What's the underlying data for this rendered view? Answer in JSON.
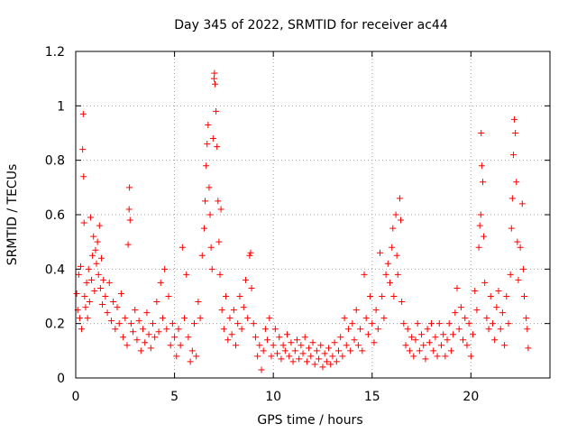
{
  "chart_data": {
    "type": "scatter",
    "title": "Day 345 of 2022, SRMTID for receiver ac44",
    "xlabel": "GPS time / hours",
    "ylabel": "SRMTID / TECUs",
    "xlim": [
      0,
      24
    ],
    "ylim": [
      0,
      1.2
    ],
    "xticks": [
      0,
      5,
      10,
      15,
      20
    ],
    "xtick_labels": [
      "0",
      "5",
      "10",
      "15",
      "20"
    ],
    "yticks": [
      0,
      0.2,
      0.4,
      0.6,
      0.8,
      1.0,
      1.2
    ],
    "ytick_labels": [
      "0",
      "0.2",
      "0.4",
      "0.6",
      "0.8",
      "1",
      "1.2"
    ],
    "grid": true,
    "marker": "plus",
    "marker_color": "#ff0000",
    "series": [
      {
        "name": "SRMTID",
        "points": [
          [
            0.05,
            0.31
          ],
          [
            0.1,
            0.25
          ],
          [
            0.15,
            0.38
          ],
          [
            0.2,
            0.22
          ],
          [
            0.25,
            0.41
          ],
          [
            0.3,
            0.18
          ],
          [
            0.35,
            0.84
          ],
          [
            0.38,
            0.97
          ],
          [
            0.4,
            0.74
          ],
          [
            0.42,
            0.57
          ],
          [
            0.45,
            0.3
          ],
          [
            0.5,
            0.26
          ],
          [
            0.55,
            0.35
          ],
          [
            0.6,
            0.22
          ],
          [
            0.65,
            0.4
          ],
          [
            0.7,
            0.28
          ],
          [
            0.75,
            0.59
          ],
          [
            0.8,
            0.36
          ],
          [
            0.85,
            0.45
          ],
          [
            0.9,
            0.52
          ],
          [
            0.95,
            0.32
          ],
          [
            1.0,
            0.47
          ],
          [
            1.05,
            0.42
          ],
          [
            1.1,
            0.5
          ],
          [
            1.15,
            0.38
          ],
          [
            1.2,
            0.56
          ],
          [
            1.25,
            0.33
          ],
          [
            1.3,
            0.44
          ],
          [
            1.35,
            0.27
          ],
          [
            1.4,
            0.36
          ],
          [
            1.5,
            0.3
          ],
          [
            1.6,
            0.24
          ],
          [
            1.7,
            0.35
          ],
          [
            1.8,
            0.21
          ],
          [
            1.9,
            0.28
          ],
          [
            2.0,
            0.18
          ],
          [
            2.1,
            0.26
          ],
          [
            2.2,
            0.2
          ],
          [
            2.3,
            0.31
          ],
          [
            2.4,
            0.15
          ],
          [
            2.5,
            0.22
          ],
          [
            2.6,
            0.12
          ],
          [
            2.65,
            0.49
          ],
          [
            2.7,
            0.62
          ],
          [
            2.72,
            0.7
          ],
          [
            2.75,
            0.58
          ],
          [
            2.8,
            0.2
          ],
          [
            2.9,
            0.17
          ],
          [
            3.0,
            0.25
          ],
          [
            3.1,
            0.14
          ],
          [
            3.2,
            0.21
          ],
          [
            3.3,
            0.1
          ],
          [
            3.4,
            0.18
          ],
          [
            3.5,
            0.13
          ],
          [
            3.6,
            0.24
          ],
          [
            3.7,
            0.16
          ],
          [
            3.8,
            0.11
          ],
          [
            3.9,
            0.2
          ],
          [
            4.0,
            0.15
          ],
          [
            4.1,
            0.28
          ],
          [
            4.2,
            0.17
          ],
          [
            4.3,
            0.35
          ],
          [
            4.4,
            0.22
          ],
          [
            4.5,
            0.4
          ],
          [
            4.6,
            0.18
          ],
          [
            4.7,
            0.3
          ],
          [
            4.8,
            0.12
          ],
          [
            4.9,
            0.2
          ],
          [
            5.0,
            0.15
          ],
          [
            5.1,
            0.08
          ],
          [
            5.2,
            0.18
          ],
          [
            5.3,
            0.12
          ],
          [
            5.4,
            0.48
          ],
          [
            5.5,
            0.22
          ],
          [
            5.6,
            0.38
          ],
          [
            5.7,
            0.15
          ],
          [
            5.8,
            0.06
          ],
          [
            5.9,
            0.1
          ],
          [
            6.0,
            0.2
          ],
          [
            6.1,
            0.08
          ],
          [
            6.2,
            0.28
          ],
          [
            6.3,
            0.22
          ],
          [
            6.4,
            0.45
          ],
          [
            6.5,
            0.55
          ],
          [
            6.55,
            0.65
          ],
          [
            6.6,
            0.78
          ],
          [
            6.65,
            0.86
          ],
          [
            6.7,
            0.93
          ],
          [
            6.75,
            0.7
          ],
          [
            6.8,
            0.6
          ],
          [
            6.85,
            0.48
          ],
          [
            6.9,
            0.4
          ],
          [
            6.95,
            0.88
          ],
          [
            7.0,
            1.1
          ],
          [
            7.02,
            1.12
          ],
          [
            7.05,
            1.08
          ],
          [
            7.1,
            0.98
          ],
          [
            7.15,
            0.85
          ],
          [
            7.2,
            0.65
          ],
          [
            7.25,
            0.5
          ],
          [
            7.3,
            0.38
          ],
          [
            7.35,
            0.62
          ],
          [
            7.4,
            0.25
          ],
          [
            7.5,
            0.18
          ],
          [
            7.6,
            0.3
          ],
          [
            7.7,
            0.14
          ],
          [
            7.8,
            0.22
          ],
          [
            7.9,
            0.16
          ],
          [
            8.0,
            0.25
          ],
          [
            8.1,
            0.12
          ],
          [
            8.2,
            0.2
          ],
          [
            8.3,
            0.3
          ],
          [
            8.4,
            0.18
          ],
          [
            8.5,
            0.26
          ],
          [
            8.6,
            0.36
          ],
          [
            8.7,
            0.22
          ],
          [
            8.8,
            0.45
          ],
          [
            8.85,
            0.46
          ],
          [
            8.9,
            0.33
          ],
          [
            9.0,
            0.2
          ],
          [
            9.1,
            0.15
          ],
          [
            9.2,
            0.08
          ],
          [
            9.3,
            0.12
          ],
          [
            9.4,
            0.03
          ],
          [
            9.5,
            0.1
          ],
          [
            9.6,
            0.18
          ],
          [
            9.7,
            0.14
          ],
          [
            9.8,
            0.22
          ],
          [
            9.9,
            0.08
          ],
          [
            10.0,
            0.12
          ],
          [
            10.1,
            0.18
          ],
          [
            10.2,
            0.09
          ],
          [
            10.3,
            0.15
          ],
          [
            10.4,
            0.07
          ],
          [
            10.5,
            0.12
          ],
          [
            10.6,
            0.1
          ],
          [
            10.7,
            0.16
          ],
          [
            10.8,
            0.08
          ],
          [
            10.9,
            0.13
          ],
          [
            11.0,
            0.06
          ],
          [
            11.1,
            0.1
          ],
          [
            11.2,
            0.14
          ],
          [
            11.3,
            0.07
          ],
          [
            11.4,
            0.12
          ],
          [
            11.5,
            0.09
          ],
          [
            11.6,
            0.15
          ],
          [
            11.7,
            0.06
          ],
          [
            11.8,
            0.11
          ],
          [
            11.9,
            0.08
          ],
          [
            12.0,
            0.13
          ],
          [
            12.1,
            0.05
          ],
          [
            12.2,
            0.1
          ],
          [
            12.3,
            0.07
          ],
          [
            12.4,
            0.12
          ],
          [
            12.5,
            0.04
          ],
          [
            12.6,
            0.09
          ],
          [
            12.7,
            0.06
          ],
          [
            12.8,
            0.11
          ],
          [
            12.9,
            0.05
          ],
          [
            13.0,
            0.08
          ],
          [
            13.1,
            0.13
          ],
          [
            13.2,
            0.06
          ],
          [
            13.3,
            0.1
          ],
          [
            13.4,
            0.15
          ],
          [
            13.5,
            0.08
          ],
          [
            13.6,
            0.22
          ],
          [
            13.7,
            0.12
          ],
          [
            13.8,
            0.18
          ],
          [
            13.9,
            0.1
          ],
          [
            14.0,
            0.2
          ],
          [
            14.1,
            0.14
          ],
          [
            14.2,
            0.25
          ],
          [
            14.3,
            0.12
          ],
          [
            14.4,
            0.18
          ],
          [
            14.5,
            0.1
          ],
          [
            14.6,
            0.38
          ],
          [
            14.7,
            0.22
          ],
          [
            14.8,
            0.16
          ],
          [
            14.9,
            0.3
          ],
          [
            15.0,
            0.2
          ],
          [
            15.1,
            0.13
          ],
          [
            15.2,
            0.25
          ],
          [
            15.3,
            0.18
          ],
          [
            15.4,
            0.46
          ],
          [
            15.5,
            0.3
          ],
          [
            15.6,
            0.22
          ],
          [
            15.7,
            0.38
          ],
          [
            15.8,
            0.42
          ],
          [
            15.9,
            0.35
          ],
          [
            16.0,
            0.48
          ],
          [
            16.05,
            0.55
          ],
          [
            16.1,
            0.3
          ],
          [
            16.2,
            0.6
          ],
          [
            16.25,
            0.45
          ],
          [
            16.3,
            0.38
          ],
          [
            16.4,
            0.66
          ],
          [
            16.45,
            0.58
          ],
          [
            16.5,
            0.28
          ],
          [
            16.6,
            0.2
          ],
          [
            16.7,
            0.12
          ],
          [
            16.8,
            0.18
          ],
          [
            16.9,
            0.1
          ],
          [
            17.0,
            0.15
          ],
          [
            17.1,
            0.08
          ],
          [
            17.2,
            0.14
          ],
          [
            17.3,
            0.2
          ],
          [
            17.4,
            0.1
          ],
          [
            17.5,
            0.16
          ],
          [
            17.6,
            0.12
          ],
          [
            17.7,
            0.07
          ],
          [
            17.8,
            0.18
          ],
          [
            17.9,
            0.13
          ],
          [
            18.0,
            0.2
          ],
          [
            18.1,
            0.1
          ],
          [
            18.2,
            0.15
          ],
          [
            18.3,
            0.08
          ],
          [
            18.4,
            0.2
          ],
          [
            18.5,
            0.12
          ],
          [
            18.6,
            0.16
          ],
          [
            18.7,
            0.08
          ],
          [
            18.8,
            0.14
          ],
          [
            18.9,
            0.2
          ],
          [
            19.0,
            0.1
          ],
          [
            19.1,
            0.16
          ],
          [
            19.2,
            0.24
          ],
          [
            19.3,
            0.33
          ],
          [
            19.4,
            0.18
          ],
          [
            19.5,
            0.26
          ],
          [
            19.6,
            0.14
          ],
          [
            19.7,
            0.22
          ],
          [
            19.8,
            0.12
          ],
          [
            19.9,
            0.2
          ],
          [
            20.0,
            0.08
          ],
          [
            20.1,
            0.16
          ],
          [
            20.2,
            0.32
          ],
          [
            20.3,
            0.25
          ],
          [
            20.4,
            0.48
          ],
          [
            20.45,
            0.56
          ],
          [
            20.5,
            0.6
          ],
          [
            20.52,
            0.9
          ],
          [
            20.55,
            0.78
          ],
          [
            20.6,
            0.72
          ],
          [
            20.65,
            0.52
          ],
          [
            20.7,
            0.35
          ],
          [
            20.8,
            0.22
          ],
          [
            20.9,
            0.18
          ],
          [
            21.0,
            0.3
          ],
          [
            21.1,
            0.2
          ],
          [
            21.2,
            0.14
          ],
          [
            21.3,
            0.26
          ],
          [
            21.4,
            0.32
          ],
          [
            21.5,
            0.18
          ],
          [
            21.6,
            0.24
          ],
          [
            21.7,
            0.12
          ],
          [
            21.8,
            0.3
          ],
          [
            21.9,
            0.2
          ],
          [
            22.0,
            0.38
          ],
          [
            22.05,
            0.55
          ],
          [
            22.1,
            0.66
          ],
          [
            22.15,
            0.82
          ],
          [
            22.2,
            0.95
          ],
          [
            22.25,
            0.9
          ],
          [
            22.3,
            0.72
          ],
          [
            22.35,
            0.5
          ],
          [
            22.4,
            0.36
          ],
          [
            22.5,
            0.48
          ],
          [
            22.6,
            0.64
          ],
          [
            22.65,
            0.4
          ],
          [
            22.7,
            0.3
          ],
          [
            22.8,
            0.22
          ],
          [
            22.85,
            0.18
          ],
          [
            22.9,
            0.11
          ]
        ]
      }
    ]
  }
}
